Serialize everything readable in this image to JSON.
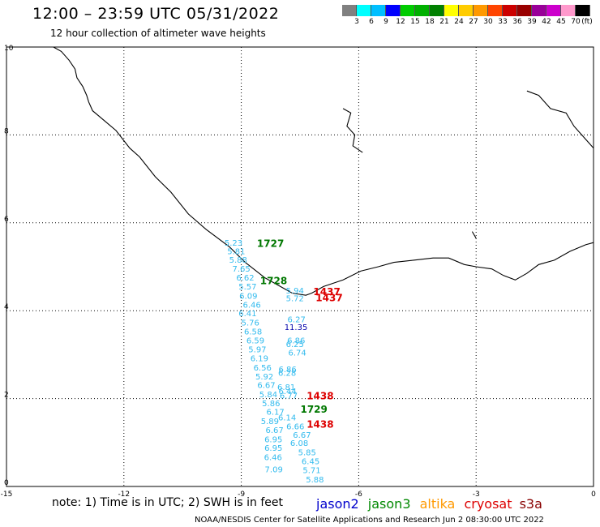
{
  "header": {
    "title": "12:00 – 23:59 UTC 05/31/2022",
    "subtitle": "12 hour collection of altimeter wave heights"
  },
  "colorbar": {
    "colors": [
      "#808080",
      "#00ffff",
      "#00bfff",
      "#0000ff",
      "#00cc00",
      "#00b000",
      "#008000",
      "#ffff00",
      "#ffcc00",
      "#ff9900",
      "#ff4400",
      "#cc0000",
      "#990000",
      "#990099",
      "#cc00cc",
      "#ff99cc",
      "#000000"
    ],
    "labels": [
      "3",
      "6",
      "9",
      "12",
      "15",
      "18",
      "21",
      "24",
      "27",
      "30",
      "33",
      "36",
      "39",
      "42",
      "45",
      "70",
      "(ft)"
    ]
  },
  "axes": {
    "x_ticks": [
      "-15",
      "-12",
      "-9",
      "-6",
      "-3",
      "0"
    ],
    "y_ticks": [
      "0",
      "2",
      "4",
      "6",
      "8",
      "10"
    ]
  },
  "observations": {
    "heights": [
      {
        "v": "5.23",
        "lon": -9.43,
        "lat": 5.48
      },
      {
        "v": "5.81",
        "lon": -9.36,
        "lat": 5.29
      },
      {
        "v": "5.88",
        "lon": -9.31,
        "lat": 5.09
      },
      {
        "v": "7.65",
        "lon": -9.23,
        "lat": 4.89
      },
      {
        "v": "6.62",
        "lon": -9.13,
        "lat": 4.69
      },
      {
        "v": "5.57",
        "lon": -9.07,
        "lat": 4.48
      },
      {
        "v": "6.09",
        "lon": -9.05,
        "lat": 4.27
      },
      {
        "v": "6.46",
        "lon": -8.96,
        "lat": 4.07
      },
      {
        "v": "6.41",
        "lon": -9.07,
        "lat": 3.87
      },
      {
        "v": "5.76",
        "lon": -9.0,
        "lat": 3.66
      },
      {
        "v": "6.58",
        "lon": -8.93,
        "lat": 3.46
      },
      {
        "v": "6.59",
        "lon": -8.87,
        "lat": 3.26
      },
      {
        "v": "5.97",
        "lon": -8.82,
        "lat": 3.05
      },
      {
        "v": "6.19",
        "lon": -8.77,
        "lat": 2.85
      },
      {
        "v": "6.56",
        "lon": -8.69,
        "lat": 2.64
      },
      {
        "v": "5.92",
        "lon": -8.64,
        "lat": 2.44
      },
      {
        "v": "6.67",
        "lon": -8.59,
        "lat": 2.24
      },
      {
        "v": "5.84",
        "lon": -8.54,
        "lat": 2.03
      },
      {
        "v": "5.86",
        "lon": -8.47,
        "lat": 1.83
      },
      {
        "v": "6.17",
        "lon": -8.36,
        "lat": 1.63
      },
      {
        "v": "5.89",
        "lon": -8.5,
        "lat": 1.42
      },
      {
        "v": "6.67",
        "lon": -8.38,
        "lat": 1.22
      },
      {
        "v": "6.95",
        "lon": -8.41,
        "lat": 1.01
      },
      {
        "v": "6.95",
        "lon": -8.41,
        "lat": 0.81
      },
      {
        "v": "6.46",
        "lon": -8.42,
        "lat": 0.6
      },
      {
        "v": "7.09",
        "lon": -8.4,
        "lat": 0.32
      },
      {
        "v": "5.94",
        "lon": -7.86,
        "lat": 4.39
      },
      {
        "v": "5.72",
        "lon": -7.86,
        "lat": 4.22
      },
      {
        "v": "6.27",
        "lon": -7.82,
        "lat": 3.74
      },
      {
        "v": "6.86",
        "lon": -7.83,
        "lat": 3.26
      },
      {
        "v": "6.25",
        "lon": -7.86,
        "lat": 3.17
      },
      {
        "v": "6.74",
        "lon": -7.8,
        "lat": 2.98
      },
      {
        "v": "6.86",
        "lon": -8.05,
        "lat": 2.6
      },
      {
        "v": "6.28",
        "lon": -8.06,
        "lat": 2.52
      },
      {
        "v": "6.81",
        "lon": -8.08,
        "lat": 2.2
      },
      {
        "v": "6.44",
        "lon": -8.05,
        "lat": 2.1
      },
      {
        "v": "6.77",
        "lon": -8.02,
        "lat": 2.0
      },
      {
        "v": "6.14",
        "lon": -8.06,
        "lat": 1.5
      },
      {
        "v": "6.66",
        "lon": -7.85,
        "lat": 1.3
      },
      {
        "v": "6.67",
        "lon": -7.68,
        "lat": 1.11
      },
      {
        "v": "6.08",
        "lon": -7.75,
        "lat": 0.92
      },
      {
        "v": "5.85",
        "lon": -7.55,
        "lat": 0.71
      },
      {
        "v": "6.45",
        "lon": -7.46,
        "lat": 0.51
      },
      {
        "v": "5.71",
        "lon": -7.43,
        "lat": 0.3
      },
      {
        "v": "5.88",
        "lon": -7.35,
        "lat": 0.09
      }
    ],
    "dark_value": {
      "v": "11.35",
      "lon": -7.9,
      "lat": 3.56
    },
    "times": [
      {
        "t": "1727",
        "lon": -8.6,
        "lat": 5.45,
        "color": "#007700"
      },
      {
        "t": "1728",
        "lon": -8.52,
        "lat": 4.6,
        "color": "#007700"
      },
      {
        "t": "1437",
        "lon": -7.16,
        "lat": 4.35,
        "color": "#dd0000"
      },
      {
        "t": "1437",
        "lon": -7.1,
        "lat": 4.22,
        "color": "#dd0000"
      },
      {
        "t": "1438",
        "lon": -7.33,
        "lat": 1.98,
        "color": "#dd0000"
      },
      {
        "t": "1729",
        "lon": -7.49,
        "lat": 1.68,
        "color": "#007700"
      },
      {
        "t": "1438",
        "lon": -7.33,
        "lat": 1.34,
        "color": "#dd0000"
      }
    ]
  },
  "footer": {
    "note": "note:  1) Time is in UTC;  2) SWH is in feet",
    "missions": [
      {
        "name": "jason2",
        "color": "#0000cc"
      },
      {
        "name": "jason3",
        "color": "#008800"
      },
      {
        "name": "altika",
        "color": "#ff9900"
      },
      {
        "name": "cryosat",
        "color": "#dd0000"
      },
      {
        "name": "s3a",
        "color": "#880000"
      }
    ],
    "credit": "NOAA/NESDIS Center for Satellite Applications and Research    Jun  2 08:30:00 UTC 2022"
  },
  "colors": {
    "height_label": "#33bbee",
    "grid": "#000000",
    "coast": "#000000"
  }
}
